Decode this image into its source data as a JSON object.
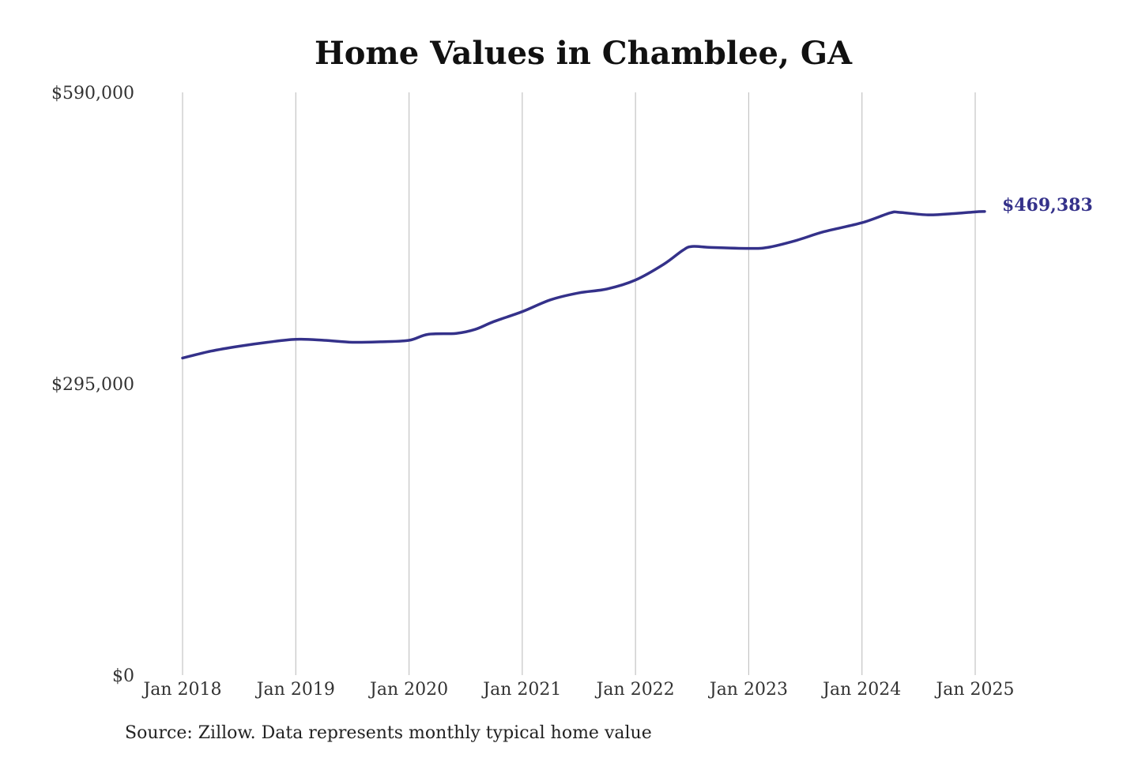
{
  "chart_data": {
    "type": "line",
    "title": "Home Values in Chamblee, GA",
    "xlabel": "",
    "ylabel": "",
    "x_ticks": [
      "Jan 2018",
      "Jan 2019",
      "Jan 2020",
      "Jan 2021",
      "Jan 2022",
      "Jan 2023",
      "Jan 2024",
      "Jan 2025"
    ],
    "y_ticks": [
      "$590,000",
      "$295,000",
      "$0"
    ],
    "y_tick_values": [
      590000,
      295000,
      0
    ],
    "ylim": [
      0,
      590000
    ],
    "xlim": [
      "2018-01",
      "2025-01"
    ],
    "grid": "vertical",
    "line_color": "#34318a",
    "end_label": "$469,383",
    "series": [
      {
        "x": [
          "2018-01",
          "2018-04",
          "2018-07",
          "2018-10",
          "2019-01",
          "2019-04",
          "2019-07",
          "2019-10",
          "2020-01",
          "2020-03",
          "2020-06",
          "2020-08",
          "2020-10",
          "2021-01",
          "2021-04",
          "2021-07",
          "2021-10",
          "2022-01",
          "2022-04",
          "2022-06",
          "2022-07",
          "2022-09",
          "2023-01",
          "2023-03",
          "2023-06",
          "2023-09",
          "2024-01",
          "2024-04",
          "2024-05",
          "2024-08",
          "2024-11",
          "2025-01",
          "2025-02"
        ],
        "values": [
          321000,
          328000,
          333000,
          337000,
          340000,
          339000,
          337000,
          337500,
          339000,
          345000,
          346000,
          350000,
          358000,
          368000,
          380000,
          387000,
          391000,
          400000,
          416000,
          430000,
          434000,
          433000,
          432000,
          433000,
          440000,
          449000,
          458000,
          468000,
          468500,
          466000,
          467500,
          469000,
          469383
        ]
      }
    ],
    "source": "Source: Zillow. Data represents monthly typical home value"
  }
}
